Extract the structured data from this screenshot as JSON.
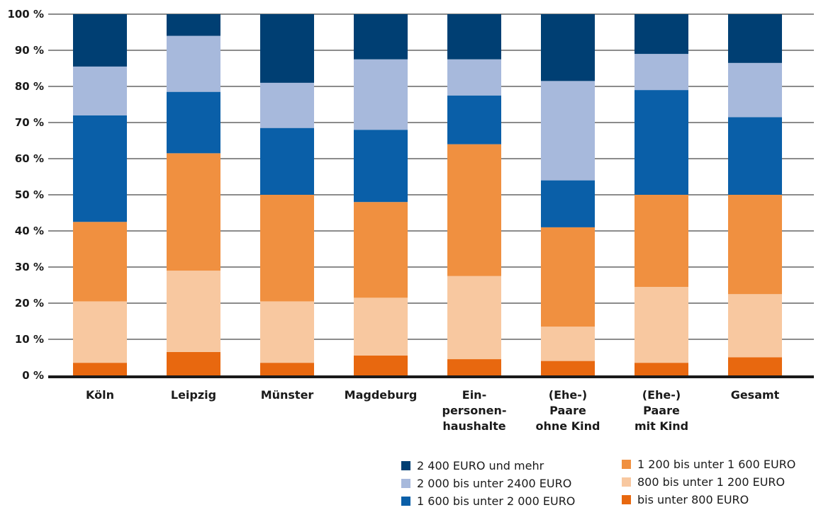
{
  "chart_data": {
    "type": "bar",
    "stacked": true,
    "title": "",
    "xlabel": "",
    "ylabel": "",
    "ylim": [
      0,
      100
    ],
    "y_ticks": [
      0,
      10,
      20,
      30,
      40,
      50,
      60,
      70,
      80,
      90,
      100
    ],
    "y_tick_labels": [
      "0 %",
      "10 %",
      "20 %",
      "30 %",
      "40 %",
      "50 %",
      "60 %",
      "70 %",
      "80 %",
      "90 %",
      "100 %"
    ],
    "grid": true,
    "legend_position": "bottom-right",
    "categories": [
      [
        "Köln"
      ],
      [
        "Leipzig"
      ],
      [
        "Münster"
      ],
      [
        "Magdeburg"
      ],
      [
        "Ein-",
        "personen-",
        "haushalte"
      ],
      [
        "(Ehe-)",
        "Paare",
        "ohne Kind"
      ],
      [
        "(Ehe-)",
        "Paare",
        "mit Kind"
      ],
      [
        "Gesamt"
      ]
    ],
    "series": [
      {
        "name": "bis unter 800 EURO",
        "color": "#e8680f",
        "values": [
          3.5,
          6.5,
          3.5,
          5.5,
          4.5,
          4,
          3.5,
          5
        ]
      },
      {
        "name": "800 bis unter 1200 EURO",
        "color": "#f8c8a0",
        "values": [
          17,
          22.5,
          17,
          16,
          23,
          9.5,
          21,
          17.5
        ]
      },
      {
        "name": "1 200 bis unter 1 600 EURO",
        "color": "#f09040",
        "values": [
          22,
          32.5,
          29.5,
          26.5,
          36.5,
          27.5,
          25.5,
          27.5
        ]
      },
      {
        "name": "1 600 bis unter 2 000 EURO",
        "color": "#0a5fa8",
        "values": [
          29.5,
          17,
          18.5,
          20,
          13.5,
          13,
          29,
          21.5
        ]
      },
      {
        "name": "2 000 bis unter 2 400 EURO",
        "color": "#a7b9dc",
        "values": [
          13.5,
          15.5,
          12.5,
          19.5,
          10,
          27.5,
          10,
          15
        ]
      },
      {
        "name": "2 400 EURO und mehr",
        "color": "#003f73",
        "values": [
          14.5,
          6,
          19,
          12.5,
          12.5,
          18.5,
          11,
          13.5
        ]
      }
    ]
  },
  "legend": {
    "items": [
      {
        "label": "2 400 EURO und mehr",
        "color": "#003f73"
      },
      {
        "label": "2 000 bis unter 2400 EURO",
        "color": "#a7b9dc"
      },
      {
        "label": "1 600 bis unter 2 000 EURO",
        "color": "#0a5fa8"
      },
      {
        "label": "1 200 bis unter 1 600 EURO",
        "color": "#f09040"
      },
      {
        "label": "800 bis unter 1 200 EURO",
        "color": "#f8c8a0"
      },
      {
        "label": "bis unter 800 EURO",
        "color": "#e8680f"
      }
    ]
  }
}
